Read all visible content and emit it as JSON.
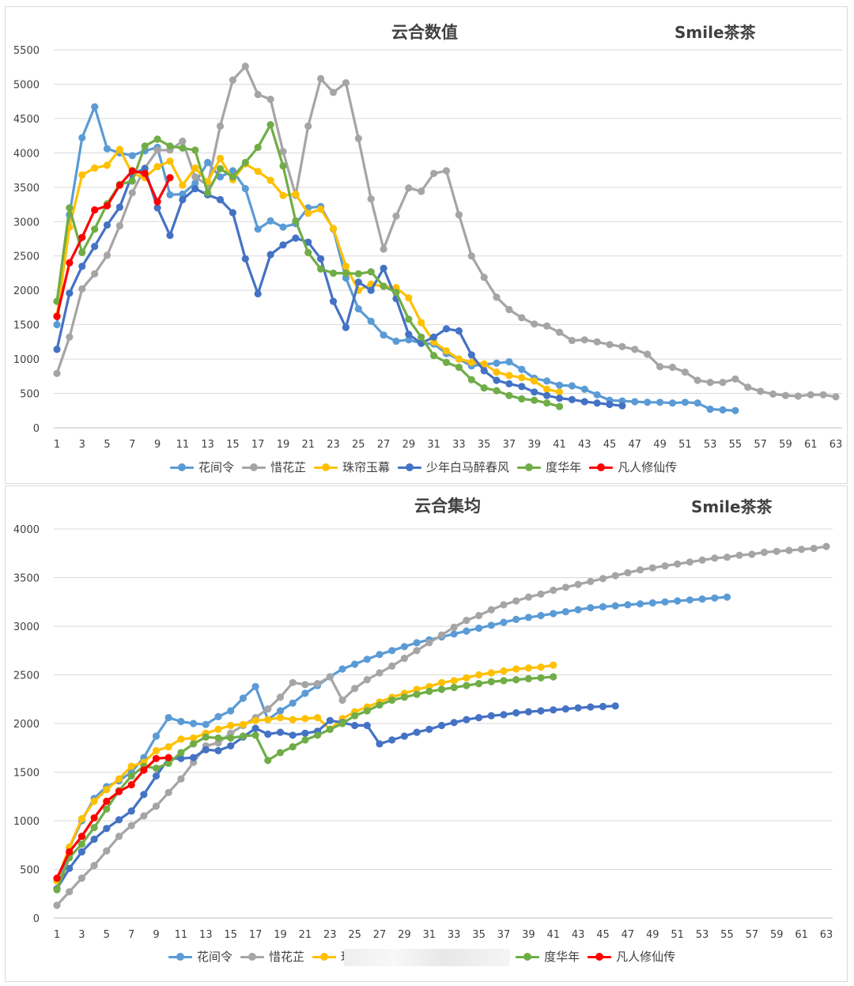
{
  "chart_data": [
    {
      "type": "line",
      "title": "云合数值",
      "subtitle": "Smile茶茶",
      "ylim": [
        0,
        5500
      ],
      "yticks": [
        0,
        500,
        1000,
        1500,
        2000,
        2500,
        3000,
        3500,
        4000,
        4500,
        5000,
        5500
      ],
      "xlim": [
        1,
        63
      ],
      "xticks": [
        1,
        3,
        5,
        7,
        9,
        11,
        13,
        15,
        17,
        19,
        21,
        23,
        25,
        27,
        29,
        31,
        33,
        35,
        37,
        39,
        41,
        43,
        45,
        47,
        49,
        51,
        53,
        55,
        57,
        59,
        61,
        63
      ],
      "grid": true,
      "legend": "bottom",
      "series": [
        {
          "name": "花间令",
          "color": "#5B9BD5",
          "values": [
            1500,
            3100,
            4220,
            4670,
            4060,
            4000,
            3960,
            4030,
            4080,
            3390,
            3400,
            3560,
            3860,
            3650,
            3740,
            3480,
            2890,
            3010,
            2920,
            2970,
            3200,
            3220,
            2890,
            2180,
            1730,
            1550,
            1350,
            1260,
            1280,
            1230,
            1220,
            1080,
            1000,
            900,
            920,
            940,
            960,
            850,
            720,
            680,
            620,
            610,
            560,
            480,
            400,
            390,
            380,
            370,
            370,
            360,
            370,
            360,
            270,
            260,
            250
          ]
        },
        {
          "name": "惜花芷",
          "color": "#A5A5A5",
          "values": [
            790,
            1320,
            2020,
            2240,
            2510,
            2940,
            3420,
            3780,
            4040,
            4040,
            4170,
            3650,
            3530,
            4390,
            5060,
            5260,
            4850,
            4780,
            4020,
            3380,
            4390,
            5080,
            4880,
            5020,
            4210,
            3330,
            2600,
            3080,
            3490,
            3440,
            3700,
            3740,
            3100,
            2500,
            2190,
            1900,
            1720,
            1600,
            1510,
            1480,
            1390,
            1270,
            1280,
            1250,
            1210,
            1180,
            1140,
            1070,
            890,
            880,
            810,
            690,
            660,
            660,
            710,
            590,
            530,
            490,
            470,
            460,
            480,
            480,
            450
          ]
        },
        {
          "name": "珠帘玉幕",
          "color": "#FFC000",
          "values": [
            1630,
            2920,
            3680,
            3780,
            3820,
            4050,
            3700,
            3640,
            3800,
            3880,
            3530,
            3780,
            3580,
            3920,
            3610,
            3840,
            3730,
            3600,
            3380,
            3400,
            3120,
            3180,
            2900,
            2350,
            2000,
            2090,
            2060,
            2040,
            1890,
            1530,
            1250,
            1120,
            1000,
            950,
            930,
            810,
            760,
            730,
            680,
            560,
            520
          ]
        },
        {
          "name": "少年白马醉春风",
          "color": "#4472C4",
          "values": [
            1140,
            1960,
            2350,
            2640,
            2950,
            3210,
            3690,
            3770,
            3200,
            2800,
            3320,
            3480,
            3390,
            3320,
            3130,
            2460,
            1950,
            2520,
            2660,
            2760,
            2700,
            2460,
            1840,
            1460,
            2120,
            2000,
            2320,
            1880,
            1360,
            1230,
            1320,
            1440,
            1410,
            1060,
            830,
            690,
            640,
            600,
            520,
            470,
            430,
            410,
            380,
            360,
            340,
            320
          ]
        },
        {
          "name": "度华年",
          "color": "#70AD47",
          "values": [
            1840,
            3200,
            2550,
            2890,
            3260,
            3540,
            3590,
            4100,
            4200,
            4100,
            4070,
            4040,
            3420,
            3770,
            3650,
            3860,
            4080,
            4410,
            3810,
            3010,
            2550,
            2310,
            2250,
            2250,
            2240,
            2270,
            2060,
            1970,
            1580,
            1320,
            1050,
            950,
            880,
            700,
            580,
            540,
            470,
            420,
            400,
            360,
            310
          ]
        },
        {
          "name": "凡人修仙传",
          "color": "#FF0000",
          "values": [
            1620,
            2400,
            2770,
            3170,
            3230,
            3530,
            3740,
            3700,
            3290,
            3640
          ]
        }
      ]
    },
    {
      "type": "line",
      "title": "云合集均",
      "subtitle": "Smile茶茶",
      "ylim": [
        0,
        4000
      ],
      "yticks": [
        0,
        500,
        1000,
        1500,
        2000,
        2500,
        3000,
        3500,
        4000
      ],
      "xlim": [
        1,
        63
      ],
      "xticks": [
        1,
        3,
        5,
        7,
        9,
        11,
        13,
        15,
        17,
        19,
        21,
        23,
        25,
        27,
        29,
        31,
        33,
        35,
        37,
        39,
        41,
        43,
        45,
        47,
        49,
        51,
        53,
        55,
        57,
        59,
        61,
        63
      ],
      "grid": true,
      "legend": "bottom",
      "series": [
        {
          "name": "花间令",
          "color": "#5B9BD5",
          "values": [
            300,
            720,
            1000,
            1230,
            1350,
            1410,
            1500,
            1650,
            1870,
            2060,
            2020,
            2000,
            1990,
            2070,
            2130,
            2260,
            2380,
            2040,
            2130,
            2210,
            2310,
            2390,
            2480,
            2560,
            2610,
            2660,
            2710,
            2750,
            2790,
            2830,
            2860,
            2890,
            2920,
            2950,
            2980,
            3010,
            3040,
            3070,
            3090,
            3110,
            3130,
            3150,
            3170,
            3190,
            3200,
            3210,
            3220,
            3230,
            3240,
            3250,
            3260,
            3270,
            3280,
            3290,
            3300
          ]
        },
        {
          "name": "惜花芷",
          "color": "#A5A5A5",
          "values": [
            130,
            270,
            410,
            540,
            690,
            840,
            950,
            1050,
            1150,
            1290,
            1430,
            1600,
            1770,
            1800,
            1900,
            1980,
            2060,
            2150,
            2270,
            2420,
            2400,
            2410,
            2480,
            2240,
            2360,
            2450,
            2520,
            2590,
            2670,
            2750,
            2830,
            2910,
            2990,
            3060,
            3110,
            3170,
            3220,
            3260,
            3300,
            3330,
            3370,
            3400,
            3430,
            3460,
            3490,
            3520,
            3550,
            3580,
            3600,
            3620,
            3640,
            3660,
            3680,
            3700,
            3710,
            3730,
            3740,
            3760,
            3770,
            3780,
            3790,
            3800,
            3820
          ]
        },
        {
          "name": "珠帘玉幕",
          "color": "#FFC000",
          "values": [
            380,
            730,
            1020,
            1200,
            1320,
            1430,
            1560,
            1600,
            1720,
            1760,
            1840,
            1850,
            1900,
            1940,
            1980,
            1990,
            2030,
            2040,
            2060,
            2040,
            2050,
            2060,
            1940,
            2050,
            2120,
            2170,
            2220,
            2270,
            2310,
            2350,
            2380,
            2420,
            2440,
            2470,
            2500,
            2520,
            2540,
            2560,
            2570,
            2580,
            2600
          ]
        },
        {
          "name": "少年白马醉春风",
          "color": "#4472C4",
          "values": [
            300,
            510,
            680,
            810,
            920,
            1010,
            1100,
            1270,
            1460,
            1640,
            1640,
            1650,
            1730,
            1720,
            1770,
            1860,
            1950,
            1890,
            1910,
            1880,
            1900,
            1920,
            2030,
            2010,
            1980,
            1980,
            1790,
            1830,
            1870,
            1910,
            1940,
            1980,
            2010,
            2040,
            2060,
            2080,
            2090,
            2110,
            2120,
            2130,
            2140,
            2150,
            2160,
            2170,
            2175,
            2180
          ]
        },
        {
          "name": "度华年",
          "color": "#70AD47",
          "values": [
            290,
            620,
            760,
            930,
            1120,
            1310,
            1460,
            1560,
            1540,
            1590,
            1700,
            1790,
            1860,
            1850,
            1850,
            1870,
            1880,
            1620,
            1700,
            1760,
            1830,
            1880,
            1940,
            2000,
            2080,
            2130,
            2190,
            2240,
            2270,
            2300,
            2330,
            2350,
            2370,
            2390,
            2410,
            2430,
            2440,
            2450,
            2460,
            2470,
            2480
          ]
        },
        {
          "name": "凡人修仙传",
          "color": "#FF0000",
          "values": [
            410,
            680,
            840,
            1030,
            1200,
            1300,
            1370,
            1520,
            1640,
            1650
          ]
        }
      ]
    }
  ]
}
